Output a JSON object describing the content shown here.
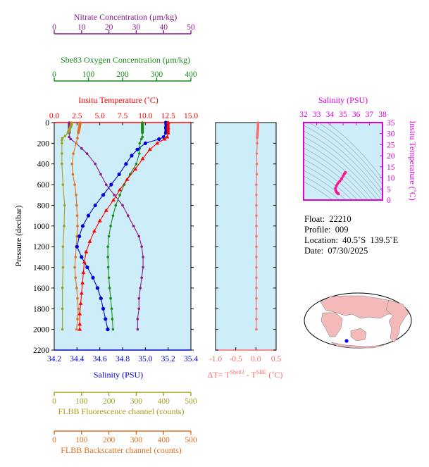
{
  "colors": {
    "panel_bg": "#cdeef8",
    "nitrate": "#8b1a8b",
    "oxygen": "#1a8a1a",
    "temperature": "#ff0000",
    "salinity": "#0000dd",
    "delta_t": "#ff6a6a",
    "fluorescence": "#a0a020",
    "backscatter": "#e07020",
    "ts_axis": "#dd00dd"
  },
  "info": {
    "float_label": "Float:",
    "float_value": "22210",
    "profile_label": "Profile:",
    "profile_value": "009",
    "location_label": "Location:",
    "location_value": "40.5˚S  139.5˚E",
    "date_label": "Date:",
    "date_value": "07/30/2025"
  },
  "chart_data": [
    {
      "type": "line",
      "name": "profile",
      "ylabel": "Pressure (decibar)",
      "ylim": [
        2200,
        0
      ],
      "yticks": [
        "0",
        "200",
        "400",
        "600",
        "800",
        "1000",
        "1200",
        "1400",
        "1600",
        "1800",
        "2000",
        "2200"
      ],
      "axes": {
        "nitrate": {
          "label": "Nitrate Concentration (μm/kg)",
          "range": [
            0,
            50
          ],
          "ticks": [
            "0",
            "10",
            "20",
            "30",
            "40",
            "50"
          ]
        },
        "oxygen": {
          "label": "Sbe83 Oxygen Concentration (μm/kg)",
          "range": [
            0,
            400
          ],
          "ticks": [
            "0",
            "100",
            "200",
            "300",
            "400"
          ]
        },
        "temperature": {
          "label": "Insitu Temperature (˚C)",
          "range": [
            0,
            15
          ],
          "ticks": [
            "0.0",
            "2.5",
            "5.0",
            "7.5",
            "10.0",
            "12.5",
            "15.0"
          ]
        },
        "salinity": {
          "label": "Salinity (PSU)",
          "range": [
            34.2,
            35.4
          ],
          "ticks": [
            "34.2",
            "34.4",
            "34.6",
            "34.8",
            "35.0",
            "35.2",
            "35.4"
          ]
        },
        "fluorescence": {
          "label": "FLBB Fluorescence channel (counts)",
          "range": [
            0,
            500
          ],
          "ticks": [
            "0",
            "100",
            "200",
            "300",
            "400",
            "500"
          ]
        },
        "backscatter": {
          "label": "FLBB Backscatter channel (counts)",
          "range": [
            0,
            500
          ],
          "ticks": [
            "0",
            "100",
            "200",
            "300",
            "400",
            "500"
          ]
        }
      },
      "series": {
        "temperature": {
          "p": [
            0,
            50,
            100,
            140,
            160,
            200,
            260,
            350,
            450,
            550,
            650,
            750,
            850,
            950,
            1050,
            1150,
            1250,
            1350,
            1450,
            1550,
            1650,
            1750,
            1850,
            1950,
            2000
          ],
          "v": [
            12.5,
            12.5,
            12.5,
            12.4,
            12.1,
            11.3,
            10.5,
            9.7,
            8.9,
            8.0,
            7.2,
            6.5,
            5.7,
            5.0,
            4.4,
            3.9,
            3.5,
            3.3,
            3.2,
            3.1,
            3.0,
            2.9,
            2.8,
            2.8,
            2.8
          ]
        },
        "salinity": {
          "p": [
            0,
            50,
            100,
            140,
            160,
            200,
            260,
            320,
            400,
            500,
            600,
            700,
            800,
            900,
            1000,
            1100,
            1200,
            1300,
            1400,
            1500,
            1600,
            1700,
            1800,
            1900,
            2000
          ],
          "v": [
            35.18,
            35.18,
            35.18,
            35.16,
            35.12,
            35.0,
            34.93,
            34.88,
            34.83,
            34.77,
            34.7,
            34.63,
            34.56,
            34.5,
            34.45,
            34.42,
            34.4,
            34.44,
            34.49,
            34.54,
            34.58,
            34.61,
            34.63,
            34.65,
            34.67
          ]
        },
        "oxygen": {
          "p": [
            0,
            50,
            100,
            140,
            160,
            200,
            250,
            300,
            400,
            500,
            600,
            700,
            800,
            900,
            1000,
            1100,
            1200,
            1300,
            1400,
            1500,
            1600,
            1700,
            1800,
            1900,
            2000
          ],
          "v": [
            258,
            258,
            258,
            258,
            255,
            250,
            250,
            249,
            240,
            222,
            205,
            192,
            180,
            172,
            165,
            160,
            157,
            157,
            158,
            160,
            162,
            165,
            168,
            170,
            172
          ]
        },
        "nitrate": {
          "p": [
            0,
            50,
            100,
            140,
            160,
            200,
            250,
            300,
            400,
            500,
            600,
            700,
            800,
            900,
            1000,
            1100,
            1200,
            1300,
            1400,
            1500,
            1600,
            1700,
            1800,
            1900,
            2000
          ],
          "v": [
            5.5,
            5.5,
            5.5,
            5.5,
            6,
            8,
            10,
            12,
            15,
            17,
            19,
            22,
            25,
            27,
            29,
            31,
            32,
            32.5,
            32.5,
            32,
            31.5,
            31,
            31,
            30.5,
            30.5
          ]
        },
        "fluorescence": {
          "p": [
            0,
            20,
            60,
            100,
            130,
            150,
            170,
            200,
            300,
            400,
            600,
            800,
            1000,
            1200,
            1400,
            1600,
            1800,
            2000
          ],
          "v": [
            63,
            63,
            57,
            50,
            40,
            30,
            28,
            28,
            28,
            28,
            32,
            38,
            36,
            32,
            32,
            30,
            30,
            30
          ]
        },
        "backscatter": {
          "p": [
            0,
            50,
            100,
            150,
            200,
            300,
            400,
            500,
            600,
            700,
            800,
            900,
            1000,
            1100,
            1200,
            1300,
            1400,
            1500,
            1600,
            1700,
            1800,
            1900,
            2000
          ],
          "v": [
            95,
            92,
            88,
            85,
            80,
            70,
            65,
            68,
            75,
            80,
            82,
            84,
            85,
            83,
            80,
            78,
            75,
            78,
            82,
            85,
            88,
            85,
            82
          ]
        }
      }
    },
    {
      "type": "line",
      "name": "delta_t",
      "xlabel_main": "ΔT= T",
      "xlabel_sup1": "Sbe83",
      "xlabel_mid": " - T",
      "xlabel_sup2": "SBE",
      "xlabel_unit": " (˚C)",
      "xlim": [
        -1.0,
        0.5
      ],
      "xticks": [
        "-1.0",
        "-0.5",
        "0.0",
        "0.5"
      ],
      "p": [
        0,
        50,
        100,
        150,
        200,
        300,
        400,
        500,
        600,
        700,
        800,
        900,
        1000,
        1100,
        1200,
        1300,
        1400,
        1500,
        1600,
        1700,
        1800,
        1900,
        2000
      ],
      "v": [
        0.05,
        0.05,
        0.04,
        0.03,
        0.03,
        0.02,
        0.02,
        0.02,
        0.01,
        0.01,
        0.01,
        0.01,
        0.01,
        0.01,
        0.01,
        0.01,
        0.01,
        0.01,
        0.01,
        0.01,
        0.01,
        0.01,
        0.01
      ]
    },
    {
      "type": "scatter",
      "name": "ts_diagram",
      "xlabel": "Salinity (PSU)",
      "ylabel": "Insitu Temperature (˚C)",
      "xlim": [
        32,
        38
      ],
      "ylim": [
        0,
        35
      ],
      "xticks": [
        "32",
        "33",
        "34",
        "35",
        "36",
        "37",
        "38"
      ],
      "yticks": [
        "0",
        "5",
        "10",
        "15",
        "20",
        "25",
        "30",
        "35"
      ],
      "salinity": [
        34.65,
        34.6,
        34.55,
        34.5,
        34.45,
        34.42,
        34.5,
        34.6,
        34.75,
        34.9,
        35.0,
        35.1,
        35.18
      ],
      "temperature": [
        2.8,
        3.0,
        3.3,
        3.6,
        4.2,
        5.2,
        6.5,
        7.5,
        8.5,
        9.7,
        10.8,
        11.8,
        12.5
      ]
    }
  ]
}
